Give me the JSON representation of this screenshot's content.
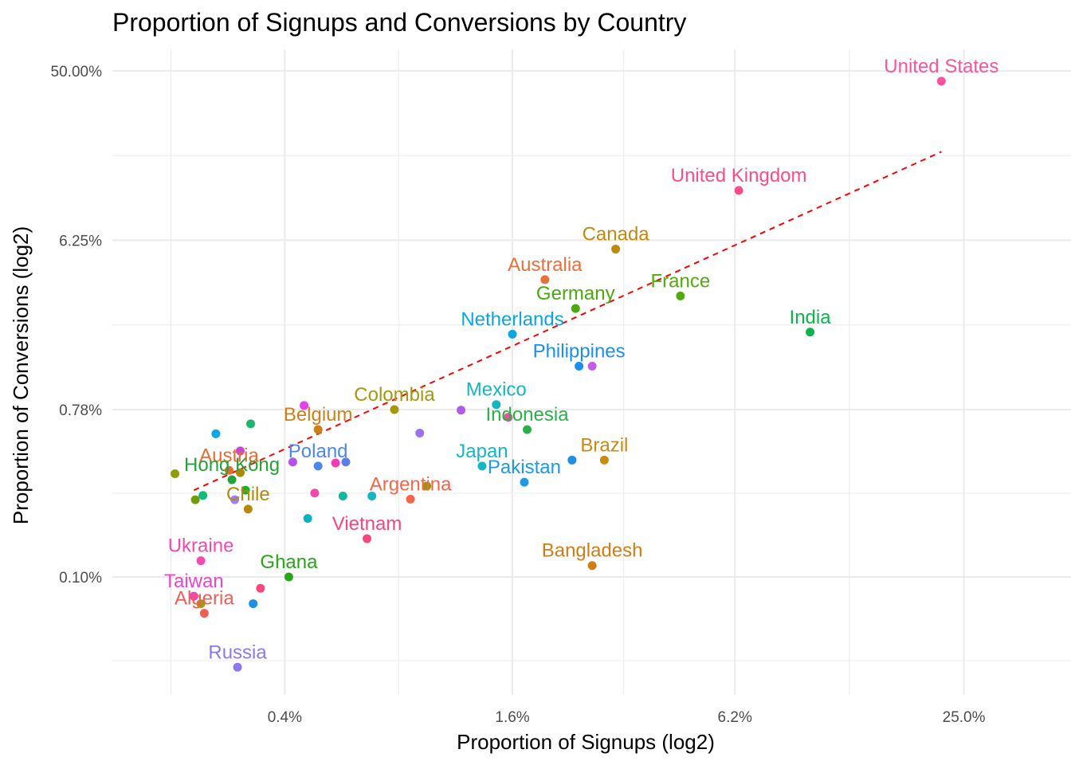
{
  "chart_data": {
    "type": "scatter",
    "title": "Proportion of Signups and Conversions by Country",
    "xlabel": "Proportion of Signups (log2)",
    "ylabel": "Proportion of Conversions (log2)",
    "x_scale": "log2",
    "y_scale": "log2",
    "x_ticks": [
      {
        "value": 0.4,
        "label": "0.4%"
      },
      {
        "value": 1.6,
        "label": "1.6%"
      },
      {
        "value": 6.2,
        "label": "6.2%"
      },
      {
        "value": 25.0,
        "label": "25.0%"
      }
    ],
    "y_ticks": [
      {
        "value": 0.1,
        "label": "0.10%"
      },
      {
        "value": 0.78,
        "label": "0.78%"
      },
      {
        "value": 6.25,
        "label": "6.25%"
      },
      {
        "value": 50.0,
        "label": "50.00%"
      }
    ],
    "xlim": [
      0.14,
      48
    ],
    "ylim": [
      0.0235,
      65
    ],
    "grid": true,
    "legend": "none",
    "trend_line": {
      "color": "#ff0000",
      "style": "dashed",
      "from": {
        "x": 0.23,
        "y": 0.29
      },
      "to": {
        "x": 21.8,
        "y": 18.5
      }
    },
    "points": [
      {
        "name": "United States",
        "x": 21.8,
        "y": 44.0,
        "color": "#f8559e"
      },
      {
        "name": "United Kingdom",
        "x": 6.35,
        "y": 11.5,
        "color": "#fa4c8e"
      },
      {
        "name": "Canada",
        "x": 3.0,
        "y": 5.6,
        "color": "#c08a0f"
      },
      {
        "name": "Australia",
        "x": 1.95,
        "y": 3.85,
        "color": "#ea6f3f"
      },
      {
        "name": "France",
        "x": 4.45,
        "y": 3.15,
        "color": "#53a90d"
      },
      {
        "name": "Germany",
        "x": 2.35,
        "y": 2.7,
        "color": "#4ba90d"
      },
      {
        "name": "India",
        "x": 9.8,
        "y": 2.02,
        "color": "#0cb54b"
      },
      {
        "name": "Netherlands",
        "x": 1.6,
        "y": 1.97,
        "color": "#0ba6df"
      },
      {
        "name": "Philippines",
        "x": 2.4,
        "y": 1.33,
        "color": "#1c8fe9"
      },
      {
        "name": "Colombia",
        "x": 0.78,
        "y": 0.78,
        "color": "#a7970e"
      },
      {
        "name": "Mexico",
        "x": 1.45,
        "y": 0.83,
        "color": "#14b6bf"
      },
      {
        "name": "Indonesia",
        "x": 1.75,
        "y": 0.61,
        "color": "#2ab04a"
      },
      {
        "name": "Belgium",
        "x": 0.49,
        "y": 0.61,
        "color": "#cd8018"
      },
      {
        "name": "Brazil",
        "x": 2.8,
        "y": 0.42,
        "color": "#c88a14"
      },
      {
        "name": "Japan",
        "x": 1.33,
        "y": 0.39,
        "color": "#17b6c5"
      },
      {
        "name": "Pakistan",
        "x": 1.72,
        "y": 0.32,
        "color": "#1c9ae8"
      },
      {
        "name": "Poland",
        "x": 0.49,
        "y": 0.39,
        "color": "#4f86eb"
      },
      {
        "name": "Austria",
        "x": 0.285,
        "y": 0.37,
        "color": "#ec6a2d"
      },
      {
        "name": "Hong Kong",
        "x": 0.29,
        "y": 0.33,
        "color": "#25a23a"
      },
      {
        "name": "Argentina",
        "x": 0.86,
        "y": 0.26,
        "color": "#f3664a"
      },
      {
        "name": "Chile",
        "x": 0.32,
        "y": 0.23,
        "color": "#b4890c"
      },
      {
        "name": "Vietnam",
        "x": 0.66,
        "y": 0.16,
        "color": "#f8467e"
      },
      {
        "name": "Ukraine",
        "x": 0.24,
        "y": 0.122,
        "color": "#f04bb0"
      },
      {
        "name": "Ghana",
        "x": 0.41,
        "y": 0.1,
        "color": "#26a618"
      },
      {
        "name": "Bangladesh",
        "x": 2.6,
        "y": 0.115,
        "color": "#d27c15"
      },
      {
        "name": "Taiwan",
        "x": 0.23,
        "y": 0.079,
        "color": "#ee45c8"
      },
      {
        "name": "Algeria",
        "x": 0.245,
        "y": 0.064,
        "color": "#f15d55"
      },
      {
        "name": "Russia",
        "x": 0.3,
        "y": 0.033,
        "color": "#9077f0"
      },
      {
        "name": "",
        "x": 0.45,
        "y": 0.82,
        "color": "#e444e7"
      },
      {
        "name": "",
        "x": 0.325,
        "y": 0.655,
        "color": "#1fb46c"
      },
      {
        "name": "",
        "x": 0.263,
        "y": 0.58,
        "color": "#0ba7df"
      },
      {
        "name": "",
        "x": 0.91,
        "y": 0.585,
        "color": "#9a71ef"
      },
      {
        "name": "",
        "x": 1.17,
        "y": 0.775,
        "color": "#b25be8"
      },
      {
        "name": "",
        "x": 1.56,
        "y": 0.71,
        "color": "#f44ca0"
      },
      {
        "name": "",
        "x": 2.6,
        "y": 1.33,
        "color": "#c65be9"
      },
      {
        "name": "",
        "x": 0.305,
        "y": 0.47,
        "color": "#c646d9"
      },
      {
        "name": "",
        "x": 0.42,
        "y": 0.41,
        "color": "#b352ea"
      },
      {
        "name": "",
        "x": 0.545,
        "y": 0.405,
        "color": "#f43bb6"
      },
      {
        "name": "",
        "x": 0.58,
        "y": 0.41,
        "color": "#5c7eeb"
      },
      {
        "name": "",
        "x": 2.3,
        "y": 0.42,
        "color": "#1c8fe9"
      },
      {
        "name": "",
        "x": 0.305,
        "y": 0.36,
        "color": "#a7890c"
      },
      {
        "name": "",
        "x": 0.205,
        "y": 0.355,
        "color": "#8f9b0b"
      },
      {
        "name": "",
        "x": 0.315,
        "y": 0.29,
        "color": "#1caf2a"
      },
      {
        "name": "",
        "x": 0.243,
        "y": 0.272,
        "color": "#0dbd7a"
      },
      {
        "name": "",
        "x": 0.232,
        "y": 0.258,
        "color": "#6e9c0a"
      },
      {
        "name": "",
        "x": 0.295,
        "y": 0.258,
        "color": "#9c7ff1"
      },
      {
        "name": "",
        "x": 0.48,
        "y": 0.28,
        "color": "#f14aa9"
      },
      {
        "name": "",
        "x": 0.57,
        "y": 0.27,
        "color": "#0dbaa0"
      },
      {
        "name": "",
        "x": 0.68,
        "y": 0.27,
        "color": "#14b6bf"
      },
      {
        "name": "",
        "x": 0.95,
        "y": 0.305,
        "color": "#8f9b0b"
      },
      {
        "name": "",
        "x": 0.46,
        "y": 0.205,
        "color": "#0ab2c6"
      },
      {
        "name": "",
        "x": 0.345,
        "y": 0.087,
        "color": "#f8467e"
      },
      {
        "name": "",
        "x": 0.24,
        "y": 0.072,
        "color": "#a09a0c"
      },
      {
        "name": "",
        "x": 0.33,
        "y": 0.072,
        "color": "#1c8fe9"
      }
    ]
  }
}
